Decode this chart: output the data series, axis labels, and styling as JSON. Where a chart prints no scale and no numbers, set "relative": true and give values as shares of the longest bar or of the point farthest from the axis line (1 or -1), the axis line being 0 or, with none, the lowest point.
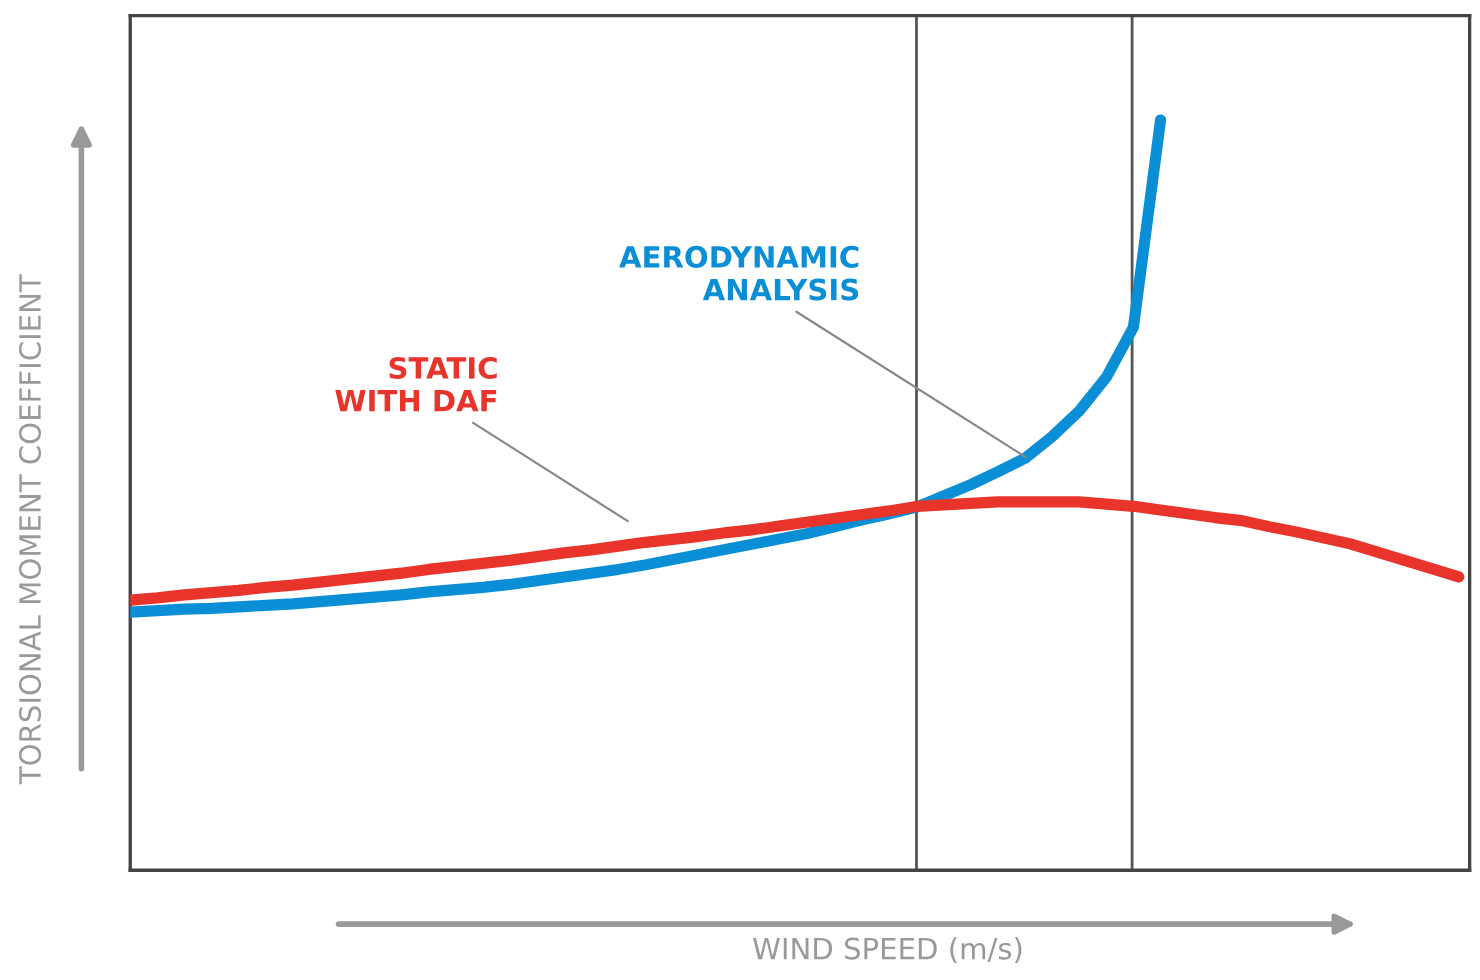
{
  "chart_data": {
    "type": "line",
    "relative": true,
    "xlabel": "WIND SPEED (m/s)",
    "ylabel": "TORSIONAL MOMENT COEFFICIENT",
    "marker": "none",
    "line_style": "solid",
    "categories": [
      null,
      null,
      null,
      null,
      null,
      null,
      null,
      null,
      null,
      null,
      null,
      null,
      null,
      null,
      null,
      null,
      null,
      null,
      null,
      null,
      null,
      null,
      null,
      null,
      null,
      null,
      null,
      null,
      null,
      null,
      null,
      null,
      null,
      null,
      null,
      null,
      null,
      null,
      null,
      null,
      null,
      null,
      null,
      null,
      null,
      null,
      null,
      null,
      null,
      null
    ],
    "series": [
      {
        "color": "#0a8fd6",
        "values": [
          0.344,
          0.346,
          0.348,
          0.349,
          0.351,
          0.353,
          0.355,
          0.358,
          0.361,
          0.364,
          0.367,
          0.371,
          0.374,
          0.377,
          0.381,
          0.386,
          0.391,
          0.396,
          0.401,
          0.407,
          0.414,
          0.421,
          0.428,
          0.435,
          0.442,
          0.449,
          0.458,
          0.467,
          0.475,
          0.484,
          0.499,
          0.514,
          0.531,
          0.549,
          0.578,
          0.612,
          0.657,
          0.724,
          1.0,
          null,
          null,
          null,
          null,
          null,
          null,
          null,
          null,
          null,
          null,
          null
        ]
      },
      {
        "color": "#e8342a",
        "values": [
          0.36,
          0.363,
          0.367,
          0.37,
          0.373,
          0.377,
          0.38,
          0.384,
          0.388,
          0.392,
          0.396,
          0.401,
          0.405,
          0.409,
          0.413,
          0.418,
          0.423,
          0.427,
          0.432,
          0.437,
          0.441,
          0.445,
          0.45,
          0.454,
          0.459,
          0.464,
          0.469,
          0.474,
          0.479,
          0.485,
          0.487,
          0.489,
          0.491,
          0.491,
          0.491,
          0.491,
          0.488,
          0.485,
          0.48,
          0.475,
          0.47,
          0.466,
          0.458,
          0.451,
          0.443,
          0.435,
          0.424,
          0.413,
          0.402,
          0.391
        ]
      }
    ],
    "annotations": [
      "AERODYNAMIC\nANALYSIS",
      "STATIC\nWITH DAF"
    ]
  }
}
